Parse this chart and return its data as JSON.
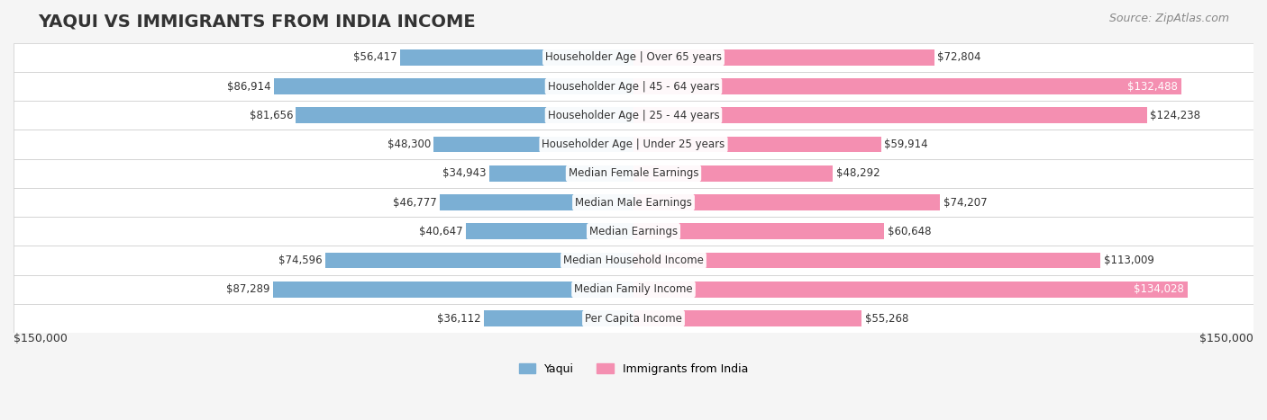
{
  "title": "YAQUI VS IMMIGRANTS FROM INDIA INCOME",
  "source": "Source: ZipAtlas.com",
  "categories": [
    "Per Capita Income",
    "Median Family Income",
    "Median Household Income",
    "Median Earnings",
    "Median Male Earnings",
    "Median Female Earnings",
    "Householder Age | Under 25 years",
    "Householder Age | 25 - 44 years",
    "Householder Age | 45 - 64 years",
    "Householder Age | Over 65 years"
  ],
  "yaqui_values": [
    36112,
    87289,
    74596,
    40647,
    46777,
    34943,
    48300,
    81656,
    86914,
    56417
  ],
  "india_values": [
    55268,
    134028,
    113009,
    60648,
    74207,
    48292,
    59914,
    124238,
    132488,
    72804
  ],
  "yaqui_labels": [
    "$36,112",
    "$87,289",
    "$74,596",
    "$40,647",
    "$46,777",
    "$34,943",
    "$48,300",
    "$81,656",
    "$86,914",
    "$56,417"
  ],
  "india_labels": [
    "$55,268",
    "$134,028",
    "$113,009",
    "$60,648",
    "$74,207",
    "$48,292",
    "$59,914",
    "$124,238",
    "$132,488",
    "$72,804"
  ],
  "yaqui_color": "#7bafd4",
  "india_color": "#f48fb1",
  "yaqui_color_dark": "#5b8db8",
  "india_color_dark": "#e91e8c",
  "max_value": 150000,
  "x_label_left": "$150,000",
  "x_label_right": "$150,000",
  "legend_yaqui": "Yaqui",
  "legend_india": "Immigrants from India",
  "background_color": "#f5f5f5",
  "row_bg_color": "#ffffff",
  "bar_height": 0.55,
  "title_fontsize": 14,
  "label_fontsize": 9,
  "source_fontsize": 9
}
